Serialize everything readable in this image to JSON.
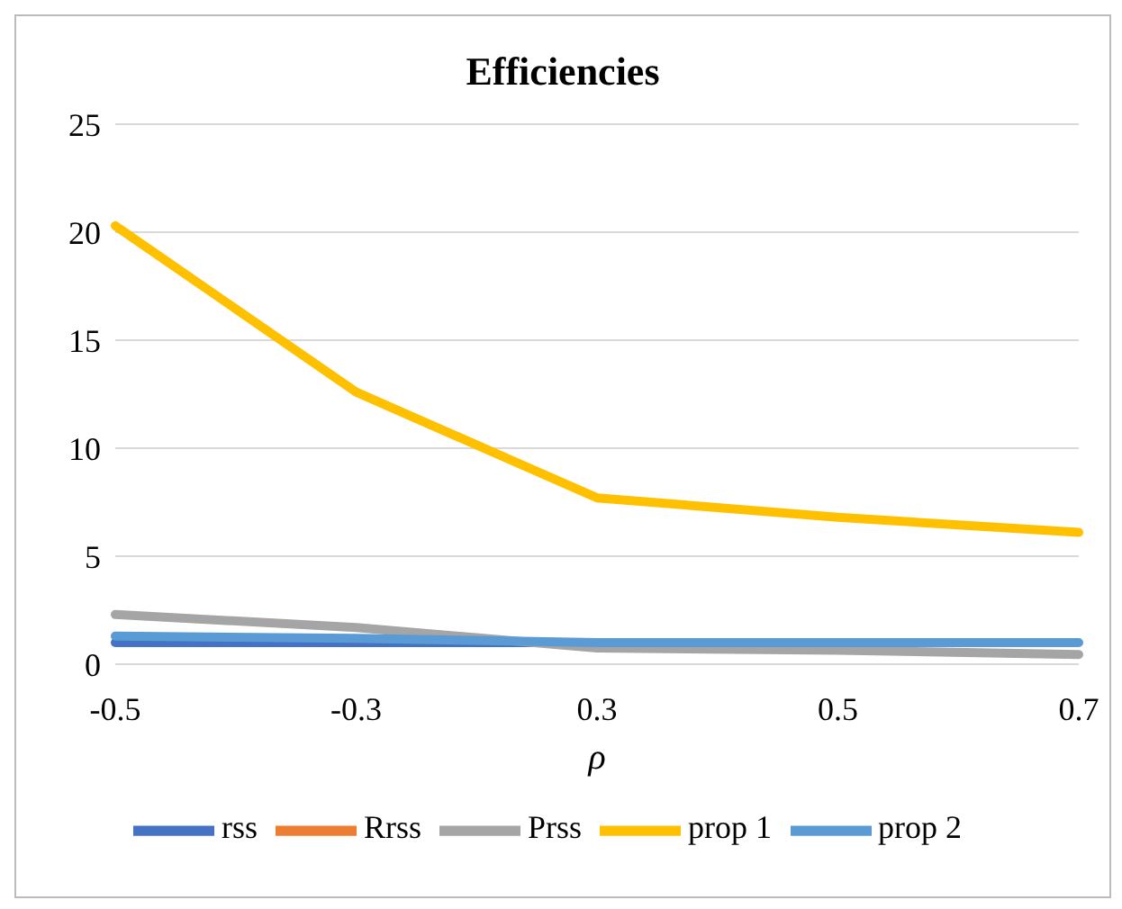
{
  "chart_data": {
    "type": "line",
    "title": "Efficiencies",
    "xlabel": "ρ",
    "categories": [
      "-0.5",
      "-0.3",
      "0.3",
      "0.5",
      "0.7"
    ],
    "series": [
      {
        "name": "rss",
        "color": "#4472c4",
        "values": [
          1,
          1,
          1,
          null,
          null
        ]
      },
      {
        "name": "Rrss",
        "color": "#ed7d31",
        "values": [
          null,
          null,
          null,
          null,
          null
        ]
      },
      {
        "name": "Prss",
        "color": "#a5a5a5",
        "values": [
          2.3,
          1.7,
          0.75,
          0.65,
          0.45
        ]
      },
      {
        "name": "prop 1",
        "color": "#ffc000",
        "values": [
          20.3,
          12.6,
          7.7,
          6.8,
          6.1
        ]
      },
      {
        "name": "prop 2",
        "color": "#5b9bd5",
        "values": [
          1.3,
          1.2,
          1,
          1,
          1
        ]
      }
    ],
    "ylim": [
      0,
      25
    ],
    "yticks": [
      0,
      5,
      10,
      15,
      20,
      25
    ],
    "grid": "y",
    "legend": "bottom",
    "marker": "none",
    "line_style": "solid"
  }
}
